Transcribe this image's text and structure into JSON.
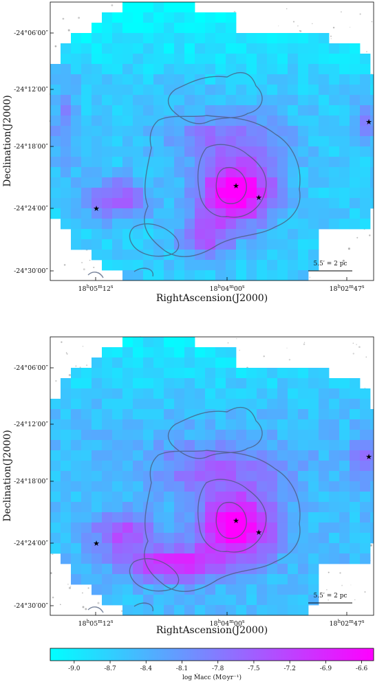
{
  "chart_data": [
    {
      "type": "heatmap",
      "panel": "top",
      "xlabel": "RightAscension(J2000)",
      "ylabel": "Declination(J2000)",
      "x_ticks": [
        {
          "main": "18",
          "h": "h",
          "m_val": "05",
          "m": "m",
          "s_val": "12",
          "s": "s"
        },
        {
          "main": "18",
          "h": "h",
          "m_val": "04",
          "m": "m",
          "s_val": "00",
          "s": "s"
        },
        {
          "main": "18",
          "h": "h",
          "m_val": "02",
          "m": "m",
          "s_val": "47",
          "s": "s"
        }
      ],
      "y_ticks": [
        "-24°06′00″",
        "-24°12′00″",
        "-24°18′00″",
        "-24°24′00″",
        "-24°30′00″"
      ],
      "scalebar_label": "5.5′ = 2 pc",
      "stars": 4,
      "colormap": [
        "#00ffff",
        "#ff00ff"
      ],
      "value_range": [
        -9.2,
        -6.5
      ],
      "peak_region": "central-east (near RA 18h03m30s, Dec -24°22′)"
    },
    {
      "type": "heatmap",
      "panel": "bottom",
      "xlabel": "RightAscension(J2000)",
      "ylabel": "Declination(J2000)",
      "x_ticks": [
        {
          "main": "18",
          "h": "h",
          "m_val": "05",
          "m": "m",
          "s_val": "12",
          "s": "s"
        },
        {
          "main": "18",
          "h": "h",
          "m_val": "04",
          "m": "m",
          "s_val": "00",
          "s": "s"
        },
        {
          "main": "18",
          "h": "h",
          "m_val": "02",
          "m": "m",
          "s_val": "47",
          "s": "s"
        }
      ],
      "y_ticks": [
        "-24°06′00″",
        "-24°12′00″",
        "-24°18′00″",
        "-24°24′00″",
        "-24°30′00″"
      ],
      "scalebar_label": "5.5′ = 2 pc",
      "stars": 4,
      "colormap": [
        "#00ffff",
        "#ff00ff"
      ],
      "value_range": [
        -9.2,
        -6.5
      ],
      "peak_region": "central-east and southern arc"
    }
  ],
  "colorbar": {
    "ticks": [
      "-9.0",
      "-8.7",
      "-8.4",
      "-8.1",
      "-7.8",
      "-7.5",
      "-7.2",
      "-6.9",
      "-6.6"
    ],
    "label": "log Ṁacc (M⊙yr⁻¹)",
    "min": -9.2,
    "max": -6.5,
    "low_color": "#00ffff",
    "high_color": "#ff00ff"
  }
}
